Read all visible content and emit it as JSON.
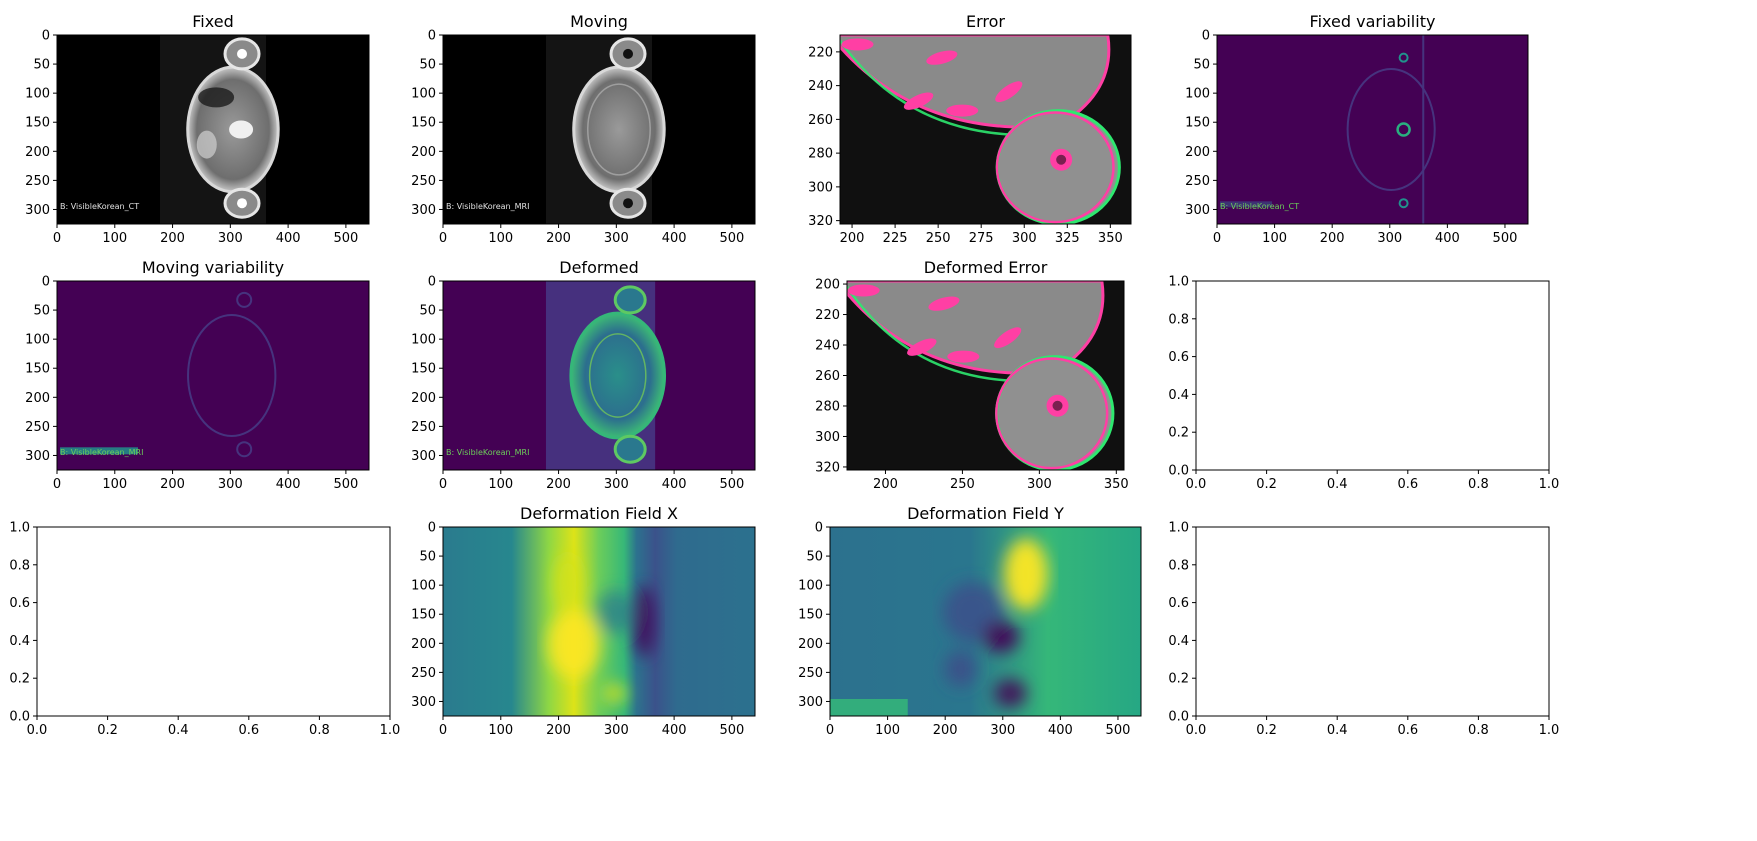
{
  "figure": {
    "rows": 3,
    "cols": 4
  },
  "colors": {
    "viridis_dark": "#440154",
    "viridis_teal": "#21918c",
    "viridis_yellow": "#fde725",
    "error_magenta": "#ff3fa4",
    "error_green": "#2ee86f"
  },
  "chart_data": [
    {
      "id": "fixed",
      "type": "heatmap",
      "title": "Fixed",
      "colormap": "gray",
      "xticks": [
        "0",
        "100",
        "200",
        "300",
        "400",
        "500"
      ],
      "yticks": [
        "0",
        "50",
        "100",
        "150",
        "200",
        "250",
        "300"
      ],
      "xlim": [
        0,
        540
      ],
      "ylim": [
        325,
        0
      ],
      "annotation": "B: VisibleKorean_CT"
    },
    {
      "id": "moving",
      "type": "heatmap",
      "title": "Moving",
      "colormap": "gray",
      "xticks": [
        "0",
        "100",
        "200",
        "300",
        "400",
        "500"
      ],
      "yticks": [
        "0",
        "50",
        "100",
        "150",
        "200",
        "250",
        "300"
      ],
      "xlim": [
        0,
        540
      ],
      "ylim": [
        325,
        0
      ],
      "annotation": "B: VisibleKorean_MRI"
    },
    {
      "id": "error",
      "type": "heatmap",
      "title": "Error",
      "colormap": "magenta-green",
      "xticks": [
        "200",
        "225",
        "250",
        "275",
        "300",
        "325",
        "350"
      ],
      "yticks": [
        "220",
        "240",
        "260",
        "280",
        "300",
        "320"
      ],
      "xlim": [
        193,
        362
      ],
      "ylim": [
        322,
        210
      ]
    },
    {
      "id": "fixed_var",
      "type": "heatmap",
      "title": "Fixed variability",
      "colormap": "viridis",
      "xticks": [
        "0",
        "100",
        "200",
        "300",
        "400",
        "500"
      ],
      "yticks": [
        "0",
        "50",
        "100",
        "150",
        "200",
        "250",
        "300"
      ],
      "xlim": [
        0,
        540
      ],
      "ylim": [
        325,
        0
      ],
      "annotation": "B: VisibleKorean_CT"
    },
    {
      "id": "moving_var",
      "type": "heatmap",
      "title": "Moving variability",
      "colormap": "viridis",
      "xticks": [
        "0",
        "100",
        "200",
        "300",
        "400",
        "500"
      ],
      "yticks": [
        "0",
        "50",
        "100",
        "150",
        "200",
        "250",
        "300"
      ],
      "xlim": [
        0,
        540
      ],
      "ylim": [
        325,
        0
      ],
      "annotation": "B: VisibleKorean_MRI"
    },
    {
      "id": "deformed",
      "type": "heatmap",
      "title": "Deformed",
      "colormap": "viridis",
      "xticks": [
        "0",
        "100",
        "200",
        "300",
        "400",
        "500"
      ],
      "yticks": [
        "0",
        "50",
        "100",
        "150",
        "200",
        "250",
        "300"
      ],
      "xlim": [
        0,
        540
      ],
      "ylim": [
        325,
        0
      ],
      "annotation": "B: VisibleKorean_MRI"
    },
    {
      "id": "deformed_error",
      "type": "heatmap",
      "title": "Deformed Error",
      "colormap": "magenta-green",
      "xticks": [
        "200",
        "250",
        "300",
        "350"
      ],
      "yticks": [
        "200",
        "220",
        "240",
        "260",
        "280",
        "300",
        "320"
      ],
      "xlim": [
        175,
        355
      ],
      "ylim": [
        322,
        198
      ]
    },
    {
      "id": "empty1",
      "type": "empty",
      "title": "",
      "xticks": [
        "0.0",
        "0.2",
        "0.4",
        "0.6",
        "0.8",
        "1.0"
      ],
      "yticks": [
        "0.0",
        "0.2",
        "0.4",
        "0.6",
        "0.8",
        "1.0"
      ],
      "xlim": [
        0,
        1
      ],
      "ylim": [
        0,
        1
      ]
    },
    {
      "id": "empty2",
      "type": "empty",
      "title": "",
      "xticks": [
        "0.0",
        "0.2",
        "0.4",
        "0.6",
        "0.8",
        "1.0"
      ],
      "yticks": [
        "0.0",
        "0.2",
        "0.4",
        "0.6",
        "0.8",
        "1.0"
      ],
      "xlim": [
        0,
        1
      ],
      "ylim": [
        0,
        1
      ]
    },
    {
      "id": "def_x",
      "type": "heatmap",
      "title": "Deformation Field X",
      "colormap": "viridis",
      "xticks": [
        "0",
        "100",
        "200",
        "300",
        "400",
        "500"
      ],
      "yticks": [
        "0",
        "50",
        "100",
        "150",
        "200",
        "250",
        "300"
      ],
      "xlim": [
        0,
        540
      ],
      "ylim": [
        325,
        0
      ]
    },
    {
      "id": "def_y",
      "type": "heatmap",
      "title": "Deformation Field Y",
      "colormap": "viridis",
      "xticks": [
        "0",
        "100",
        "200",
        "300",
        "400",
        "500"
      ],
      "yticks": [
        "0",
        "50",
        "100",
        "150",
        "200",
        "250",
        "300"
      ],
      "xlim": [
        0,
        540
      ],
      "ylim": [
        325,
        0
      ]
    },
    {
      "id": "empty3",
      "type": "empty",
      "title": "",
      "xticks": [
        "0.0",
        "0.2",
        "0.4",
        "0.6",
        "0.8",
        "1.0"
      ],
      "yticks": [
        "0.0",
        "0.2",
        "0.4",
        "0.6",
        "0.8",
        "1.0"
      ],
      "xlim": [
        0,
        1
      ],
      "ylim": [
        0,
        1
      ]
    }
  ]
}
